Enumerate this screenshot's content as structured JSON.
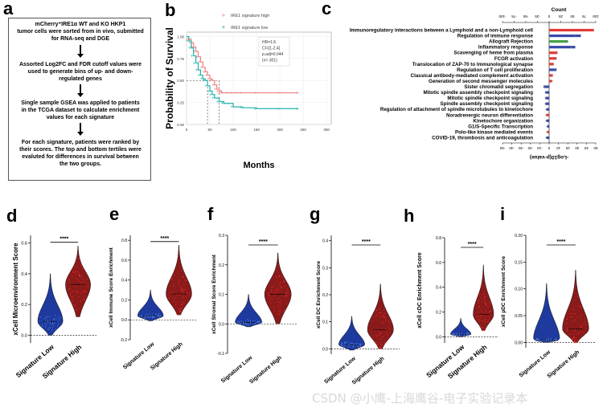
{
  "panel_labels": [
    "a",
    "b",
    "c",
    "d",
    "e",
    "f",
    "g",
    "h",
    "i"
  ],
  "flowchart": {
    "steps": [
      "mCherry⁺IRE1α WT and KO HKP1\ntumor cells were sorted from in vivo, submitted\nfor RNA-seq and DGE",
      "Assorted Log2FC and FDR cutoff values were\nused to generate bins of up- and down-\nregulated genes",
      "Single sample GSEA was applied to patients\nin the TCGA dataset to calculate enrichment\nvalues for each signature",
      "For each signature, patients were ranked by\ntheir scores. The top and bottom tertiles were\nevaluted for differences in survival between\nthe two groups."
    ]
  },
  "chart_data": [
    {
      "panel": "b",
      "type": "line",
      "ylabel": "Probability of Survival",
      "xlabel": "Months",
      "xticks": [
        "0",
        "50",
        "100",
        "150",
        "200",
        "250",
        "300"
      ],
      "yticks": [
        "0.00",
        "0.25",
        "0.50",
        "0.75",
        "1.00"
      ],
      "xlim": [
        0,
        310
      ],
      "ylim": [
        0,
        1.05
      ],
      "legend": [
        "IRE1 signature high",
        "IRE1 signature low"
      ],
      "annotation": [
        "HR=1.6",
        "CI=[1-2.4]",
        "p.adj=0.044",
        "(n= 301)"
      ],
      "median_lines": [
        45,
        70
      ],
      "series": [
        {
          "name": "IRE1 signature high",
          "color": "#f08080",
          "x": [
            0,
            5,
            10,
            15,
            20,
            25,
            30,
            35,
            40,
            45,
            50,
            55,
            60,
            65,
            70,
            75,
            80,
            90,
            100,
            110,
            120,
            150,
            200,
            240
          ],
          "y": [
            1.0,
            0.97,
            0.93,
            0.88,
            0.83,
            0.77,
            0.71,
            0.65,
            0.6,
            0.56,
            0.52,
            0.5,
            0.45,
            0.4,
            0.38,
            0.36,
            0.36,
            0.36,
            0.36,
            0.36,
            0.36,
            0.36,
            0.36,
            0.36
          ]
        },
        {
          "name": "IRE1 signature low",
          "color": "#20b2aa",
          "x": [
            0,
            5,
            10,
            15,
            20,
            25,
            30,
            35,
            40,
            45,
            50,
            55,
            60,
            70,
            80,
            100,
            120,
            150,
            200,
            240
          ],
          "y": [
            1.0,
            0.95,
            0.87,
            0.78,
            0.7,
            0.62,
            0.56,
            0.52,
            0.5,
            0.44,
            0.38,
            0.34,
            0.3,
            0.26,
            0.24,
            0.2,
            0.19,
            0.18,
            0.18,
            0.18
          ]
        }
      ]
    },
    {
      "panel": "c",
      "type": "bar",
      "orientation": "horizontal",
      "top_axis_label": "Count",
      "top_ticks": [
        "-100",
        "-75",
        "-50",
        "-25",
        "0",
        "25",
        "50",
        "75",
        "100"
      ],
      "bottom_axis_label": "-Log10(p-value)",
      "bottom_ticks": [
        "-50",
        "-40",
        "-30",
        "-20",
        "-10",
        "0",
        "10",
        "20",
        "30",
        "40",
        "50"
      ],
      "categories": [
        "Immunoregulatory interactions between a Lymphoid and a non-Lymphoid cell",
        "Regulation of immune response",
        "Allograft Rejection",
        "Inflammatory response",
        "Scavenging of heme from plasma",
        "FCGR activation",
        "Translocation of ZAP-70 to Immunological synapse",
        "Regulation of T cell proliferation",
        "Classical antibody-mediated complement activation",
        "Generation of second messenger molecules",
        "Sister chromatid segregation",
        "Mitotic spindle assembly checkpoint signaling",
        "Mitotic spindle checkpoint signaling",
        "Spindle assembly checkpoint signaling",
        "Regulation of attachment of spindle microtubules to kinetochore",
        "Noradrenergic neuron differentiation",
        "Kinetochore organization",
        "G1/S-Specific Transcription",
        "Polo-like kinase mediated events",
        "COVID-19, thrombosis and anticoagulation"
      ],
      "values": [
        48,
        34,
        20,
        28,
        9,
        8,
        5,
        8,
        4,
        3,
        -6,
        -4,
        -4,
        -4,
        -3,
        -3,
        -3,
        -2,
        -2,
        -3
      ],
      "counts": [
        95,
        70,
        50,
        60,
        18,
        16,
        10,
        15,
        8,
        8,
        -12,
        -10,
        -10,
        -10,
        -8,
        -8,
        -8,
        -6,
        -6,
        -8
      ],
      "colors": [
        "#e53935",
        "#3949ab",
        "#43a047",
        "#3949ab",
        "#e53935",
        "#e53935",
        "#e53935",
        "#3949ab",
        "#e53935",
        "#e53935",
        "#3949ab",
        "#3949ab",
        "#3949ab",
        "#3949ab",
        "#3949ab",
        "#e53935",
        "#3949ab",
        "#3949ab",
        "#e53935",
        "#3949ab"
      ]
    },
    {
      "panel": "d",
      "type": "violin",
      "ylabel": "xCell Microenvironment Score",
      "categories": [
        "Signature Low",
        "Signature High"
      ],
      "yticks": [
        "0.0",
        "0.2",
        "0.4",
        "0.6"
      ],
      "ylim": [
        -0.05,
        0.65
      ],
      "medians": [
        0.09,
        0.33
      ],
      "ranges": [
        [
          0.0,
          0.4
        ],
        [
          0.12,
          0.58
        ]
      ],
      "significance": "****"
    },
    {
      "panel": "e",
      "type": "violin",
      "ylabel": "xCell Immune Score Enrichment",
      "categories": [
        "Signature Low",
        "Signature High"
      ],
      "yticks": [
        "-0.2",
        "0.0",
        "0.2",
        "0.4",
        "0.6",
        "0.8"
      ],
      "ylim": [
        -0.2,
        0.85
      ],
      "medians": [
        0.04,
        0.26
      ],
      "ranges": [
        [
          -0.01,
          0.3
        ],
        [
          0.05,
          0.75
        ]
      ],
      "significance": "****"
    },
    {
      "panel": "f",
      "type": "violin",
      "ylabel": "xCell Stromal Score Enrichment",
      "categories": [
        "Signature Low",
        "Signature High"
      ],
      "yticks": [
        "-0.1",
        "0.0",
        "0.1",
        "0.2",
        "0.3"
      ],
      "ylim": [
        -0.1,
        0.3
      ],
      "medians": [
        0.005,
        0.1
      ],
      "ranges": [
        [
          -0.01,
          0.1
        ],
        [
          0.0,
          0.24
        ]
      ],
      "significance": "****"
    },
    {
      "panel": "g",
      "type": "violin",
      "ylabel": "xCell DC Enrichment Score",
      "categories": [
        "Signature Low",
        "Signature High"
      ],
      "yticks": [
        "0.0",
        "0.1",
        "0.2",
        "0.3",
        "0.4"
      ],
      "ylim": [
        -0.02,
        0.42
      ],
      "medians": [
        0.015,
        0.07
      ],
      "ranges": [
        [
          -0.005,
          0.12
        ],
        [
          0.0,
          0.24
        ]
      ],
      "significance": "****"
    },
    {
      "panel": "h",
      "type": "violin",
      "ylabel": "xCell cDC Enrichment Score",
      "categories": [
        "Signature Low",
        "Signature High"
      ],
      "yticks": [
        "0.0",
        "0.2",
        "0.4",
        "0.6",
        "0.8"
      ],
      "ylim": [
        -0.05,
        0.8
      ],
      "medians": [
        0.02,
        0.18
      ],
      "ranges": [
        [
          0.0,
          0.15
        ],
        [
          0.05,
          0.58
        ]
      ],
      "significance": "****"
    },
    {
      "panel": "i",
      "type": "violin",
      "ylabel": "xCell pDC Enrichment Score",
      "categories": [
        "Signature Low",
        "Signature High"
      ],
      "yticks": [
        "0.00",
        "0.05",
        "0.10",
        "0.15",
        "0.20"
      ],
      "ylim": [
        -0.01,
        0.2
      ],
      "medians": [
        0.005,
        0.025
      ],
      "ranges": [
        [
          0.0,
          0.11
        ],
        [
          0.0,
          0.135
        ]
      ],
      "significance": "****"
    }
  ],
  "watermark": "CSDN @小鹰-上海鹰谷-电子实验记录本"
}
